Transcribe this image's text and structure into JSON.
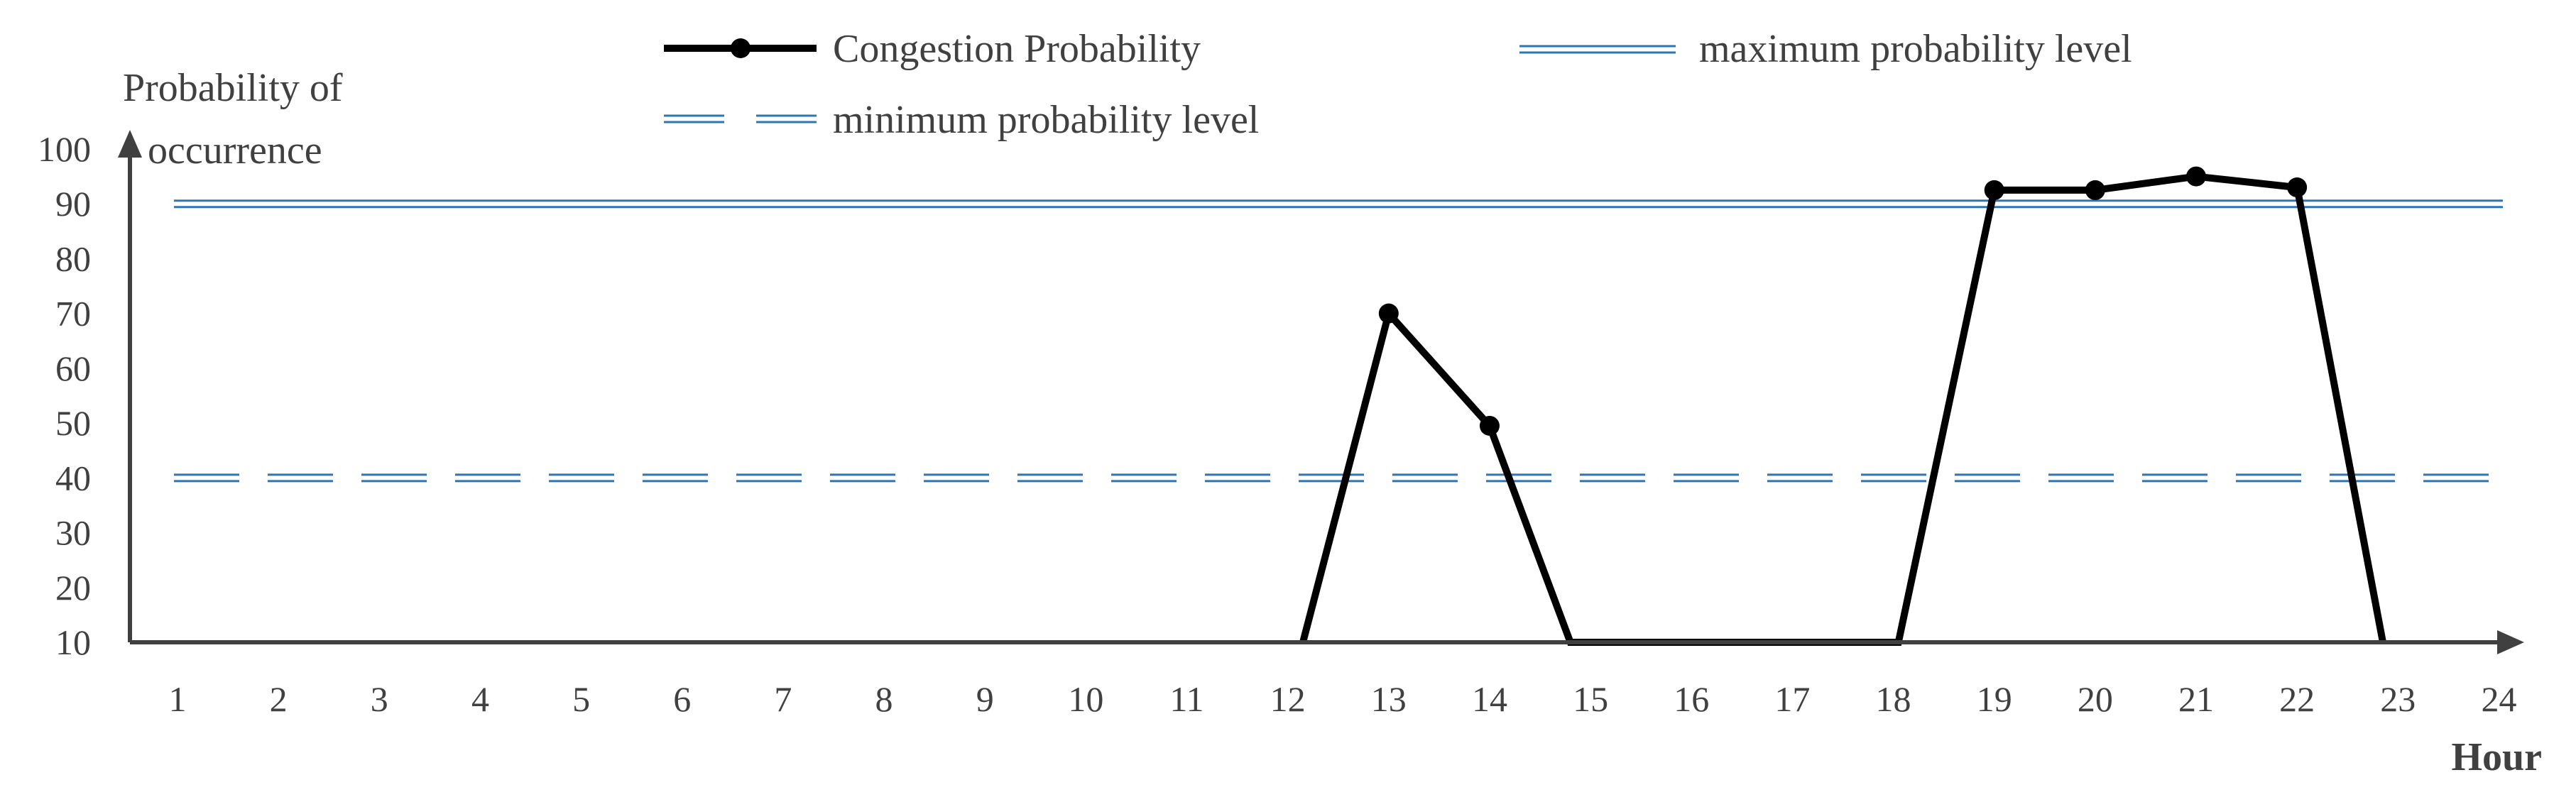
{
  "chart_data": {
    "type": "line",
    "ylabel_lines": [
      "Probability of",
      "occurrence"
    ],
    "xlabel": "Hour",
    "x": [
      1,
      2,
      3,
      4,
      5,
      6,
      7,
      8,
      9,
      10,
      11,
      12,
      13,
      14,
      15,
      16,
      17,
      18,
      19,
      20,
      21,
      22,
      23,
      24
    ],
    "y_ticks": [
      10,
      20,
      30,
      40,
      50,
      60,
      70,
      80,
      90,
      100
    ],
    "ylim": [
      10,
      100
    ],
    "series": [
      {
        "name": "Congestion Probability",
        "color": "#000000",
        "points": [
          {
            "x": 12.15,
            "y": 10,
            "marker": false
          },
          {
            "x": 13,
            "y": 70,
            "marker": true
          },
          {
            "x": 14,
            "y": 49.5,
            "marker": true
          },
          {
            "x": 14.8,
            "y": 10,
            "marker": false
          },
          {
            "x": 18.05,
            "y": 10,
            "marker": false
          },
          {
            "x": 19,
            "y": 92.5,
            "marker": true
          },
          {
            "x": 20,
            "y": 92.5,
            "marker": true
          },
          {
            "x": 21,
            "y": 95,
            "marker": true
          },
          {
            "x": 22,
            "y": 93,
            "marker": true
          },
          {
            "x": 22.85,
            "y": 10,
            "marker": false
          }
        ]
      }
    ],
    "reference_lines": [
      {
        "name": "maximum probability level",
        "y": 90,
        "style": "double-solid",
        "color": "#2e75b6"
      },
      {
        "name": "minimum probability level",
        "y": 40,
        "style": "double-dashed",
        "color": "#2e75b6"
      }
    ],
    "legend": [
      {
        "label": "Congestion Probability",
        "style": "line-marker"
      },
      {
        "label": "maximum probability level",
        "style": "double-solid"
      },
      {
        "label": "minimum probability level",
        "style": "double-dashed"
      }
    ],
    "legend_position": "top"
  }
}
